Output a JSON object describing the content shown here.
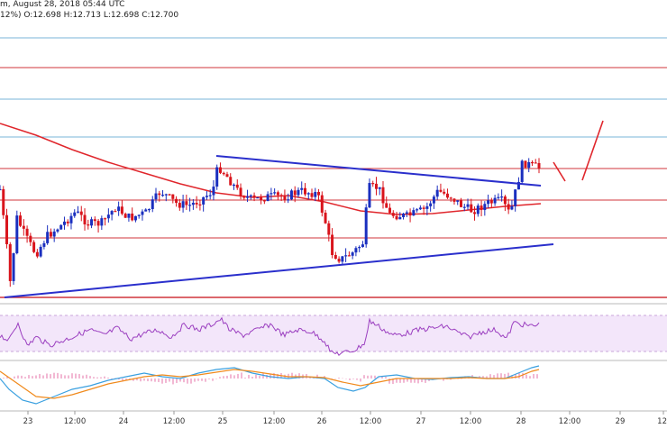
{
  "header": {
    "line1": "m, August 28, 2018 05:44 UTC",
    "line2": "12%) O:12.698 H:12.713 L:12.698 C:12.700"
  },
  "chart_data": {
    "type": "candlestick",
    "instrument_timestamp": "August 28, 2018 05:44 UTC",
    "ohlc_last": {
      "O": 12.698,
      "H": 12.713,
      "L": 12.698,
      "C": 12.7
    },
    "x_axis_labels": [
      "23",
      "12:00",
      "24",
      "12:00",
      "25",
      "12:00",
      "26",
      "12:00",
      "27",
      "12:00",
      "28",
      "12:00",
      "29",
      "12:"
    ],
    "colors": {
      "bull": "#1a2fbf",
      "bear": "#d9141c",
      "trendline": "#2a2fcc",
      "moving_average": "#e0262c",
      "red_level": "#d0353b",
      "blue_level": "#78b4d8",
      "rsi_fill": "#f3e6fa",
      "rsi_line": "#9b3fc0",
      "macd_line": "#3aa0e0",
      "signal_line": "#f08a1c",
      "histogram": "#e889b6"
    },
    "panels": [
      "price",
      "rsi",
      "macd"
    ],
    "series": [
      {
        "name": "price",
        "kind": "candlestick",
        "bars": 160
      },
      {
        "name": "moving average",
        "kind": "line"
      },
      {
        "name": "RSI",
        "kind": "line"
      },
      {
        "name": "MACD",
        "kind": "line"
      },
      {
        "name": "signal",
        "kind": "line"
      },
      {
        "name": "histogram",
        "kind": "bar"
      }
    ],
    "annotations": [
      "descending trendline",
      "ascending trendline",
      "projected move down then up"
    ],
    "grid": false
  }
}
